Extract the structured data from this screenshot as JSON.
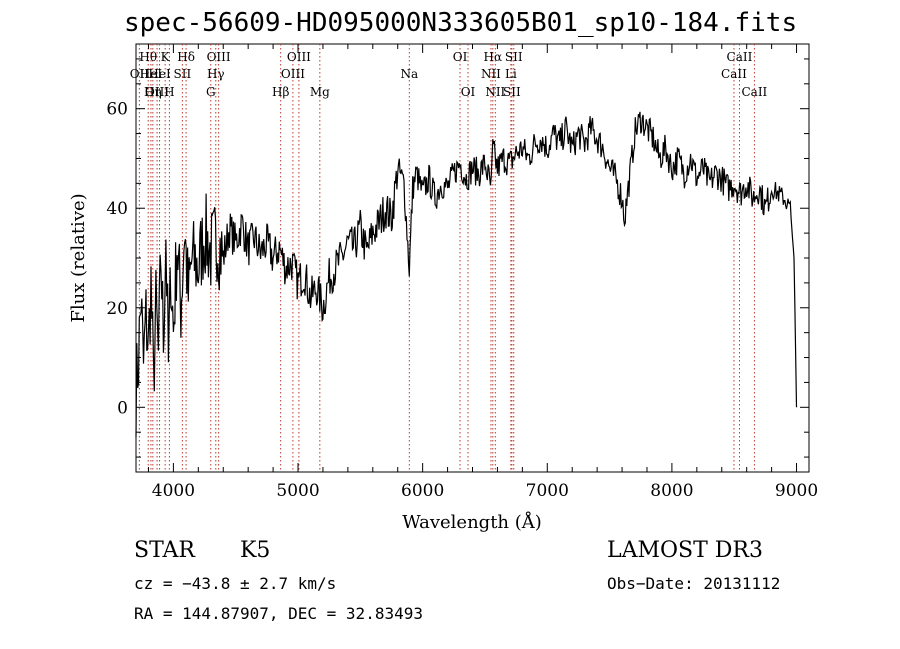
{
  "chart_data": {
    "type": "line",
    "title": "spec-56609-HD095000N333605B01_sp10-184.fits",
    "xlabel": "Wavelength (Å)",
    "ylabel": "Flux (relative)",
    "xlim": [
      3700,
      9100
    ],
    "ylim": [
      -13,
      73
    ],
    "xticks": [
      4000,
      5000,
      6000,
      7000,
      8000,
      9000
    ],
    "yticks": [
      0,
      20,
      40,
      60
    ],
    "grid": false,
    "series": [
      {
        "name": "spectrum",
        "x": [
          3700,
          3720,
          3740,
          3760,
          3780,
          3800,
          3820,
          3840,
          3860,
          3880,
          3900,
          3920,
          3940,
          3960,
          3980,
          4000,
          4030,
          4060,
          4090,
          4120,
          4150,
          4200,
          4250,
          4300,
          4350,
          4400,
          4450,
          4500,
          4550,
          4600,
          4650,
          4700,
          4750,
          4800,
          4850,
          4900,
          4950,
          5000,
          5050,
          5100,
          5150,
          5200,
          5250,
          5300,
          5350,
          5400,
          5450,
          5500,
          5550,
          5600,
          5650,
          5700,
          5750,
          5800,
          5850,
          5893,
          5920,
          5950,
          6000,
          6050,
          6100,
          6150,
          6200,
          6250,
          6300,
          6350,
          6400,
          6450,
          6500,
          6550,
          6563,
          6600,
          6650,
          6700,
          6750,
          6800,
          6850,
          6900,
          6950,
          7000,
          7050,
          7100,
          7150,
          7200,
          7250,
          7300,
          7350,
          7400,
          7450,
          7500,
          7550,
          7600,
          7620,
          7650,
          7680,
          7700,
          7750,
          7800,
          7850,
          7900,
          7950,
          8000,
          8050,
          8100,
          8150,
          8200,
          8250,
          8300,
          8350,
          8400,
          8450,
          8500,
          8550,
          8600,
          8650,
          8700,
          8750,
          8800,
          8850,
          8900,
          8950,
          8980,
          9000
        ],
        "values": [
          3,
          10,
          22,
          8,
          18,
          12,
          25,
          5,
          20,
          10,
          30,
          14,
          35,
          8,
          28,
          15,
          33,
          20,
          36,
          22,
          30,
          28,
          35,
          31,
          34,
          30,
          36,
          33,
          37,
          32,
          34,
          31,
          33,
          30,
          32,
          28,
          29,
          25,
          27,
          22,
          24,
          20,
          26,
          28,
          30,
          33,
          32,
          36,
          31,
          35,
          37,
          40,
          38,
          48,
          45,
          28,
          44,
          47,
          43,
          46,
          42,
          45,
          44,
          47,
          49,
          46,
          48,
          47,
          49,
          44,
          52,
          48,
          50,
          49,
          51,
          52,
          50,
          53,
          54,
          52,
          55,
          53,
          56,
          52,
          55,
          53,
          56,
          54,
          52,
          48,
          46,
          42,
          38,
          44,
          50,
          55,
          58,
          56,
          54,
          50,
          52,
          48,
          50,
          47,
          50,
          46,
          48,
          45,
          47,
          46,
          44,
          45,
          43,
          45,
          42,
          44,
          40,
          44,
          43,
          42,
          40,
          30,
          0
        ]
      }
    ],
    "lines": [
      {
        "name": "OII",
        "wavelength": 3727,
        "row": 2
      },
      {
        "name": "Hθ",
        "wavelength": 3798,
        "row": 1
      },
      {
        "name": "HeI",
        "wavelength": 3820,
        "row": 2
      },
      {
        "name": "Hη",
        "wavelength": 3835,
        "row": 3
      },
      {
        "name": "OIII",
        "wavelength": 3869,
        "row": 3
      },
      {
        "name": "K",
        "wavelength": 3934,
        "row": 1
      },
      {
        "name": "HeI",
        "wavelength": 3889,
        "row": 2
      },
      {
        "name": "H",
        "wavelength": 3968,
        "row": 3
      },
      {
        "name": "SII",
        "wavelength": 4072,
        "row": 2
      },
      {
        "name": "Hδ",
        "wavelength": 4102,
        "row": 1
      },
      {
        "name": "G",
        "wavelength": 4300,
        "row": 3
      },
      {
        "name": "Hγ",
        "wavelength": 4340,
        "row": 2
      },
      {
        "name": "OIII",
        "wavelength": 4363,
        "row": 1
      },
      {
        "name": "Hβ",
        "wavelength": 4861,
        "row": 3
      },
      {
        "name": "OIII",
        "wavelength": 4959,
        "row": 2
      },
      {
        "name": "OIII",
        "wavelength": 5007,
        "row": 1
      },
      {
        "name": "Mg",
        "wavelength": 5175,
        "row": 3
      },
      {
        "name": "Na",
        "wavelength": 5893,
        "row": 2
      },
      {
        "name": "OI",
        "wavelength": 6300,
        "row": 1
      },
      {
        "name": "OI",
        "wavelength": 6364,
        "row": 3
      },
      {
        "name": "NII",
        "wavelength": 6548,
        "row": 2
      },
      {
        "name": "Hα",
        "wavelength": 6563,
        "row": 1
      },
      {
        "name": "NII",
        "wavelength": 6583,
        "row": 3
      },
      {
        "name": "SII",
        "wavelength": 6716,
        "row": 3
      },
      {
        "name": "Li",
        "wavelength": 6708,
        "row": 2
      },
      {
        "name": "SII",
        "wavelength": 6731,
        "row": 1
      },
      {
        "name": "CaII",
        "wavelength": 8498,
        "row": 2
      },
      {
        "name": "CaII",
        "wavelength": 8542,
        "row": 1
      },
      {
        "name": "CaII",
        "wavelength": 8662,
        "row": 3
      }
    ]
  },
  "info": {
    "class": "STAR",
    "subclass": "K5",
    "cz": "cz = −43.8 ± 2.7 km/s",
    "radec": "RA = 144.87907, DEC =  32.83493",
    "survey": "LAMOST DR3",
    "obsdate": "Obs−Date: 20131112"
  }
}
